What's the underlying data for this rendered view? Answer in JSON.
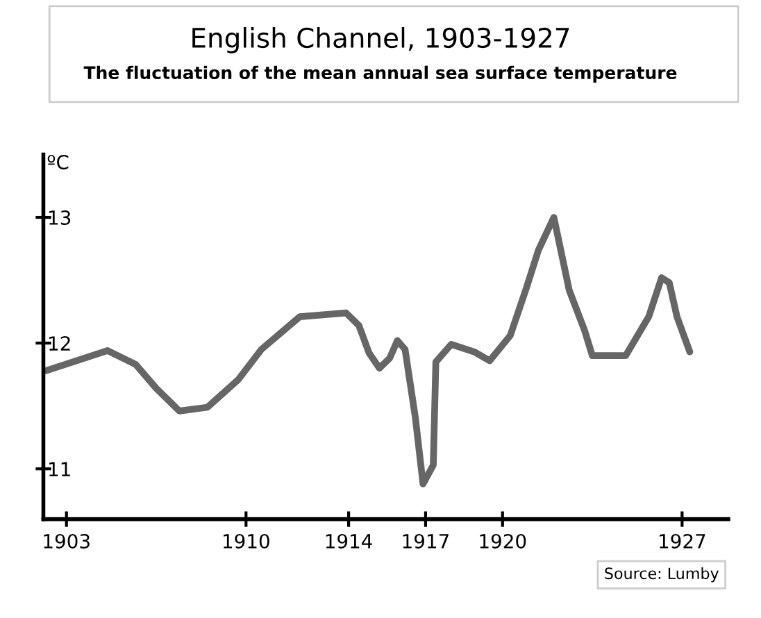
{
  "chart_data": {
    "type": "line",
    "title": "English Channel, 1903-1927",
    "subtitle": "The fluctuation of the mean annual sea surface temperature",
    "ylabel": "ºC",
    "annotations": [
      "Source: Lumby"
    ],
    "x": [
      1902.2,
      1904.6,
      1905.7,
      1906.5,
      1907.4,
      1908.5,
      1909.7,
      1910.6,
      1912.1,
      1913.9,
      1914.4,
      1914.8,
      1915.2,
      1915.6,
      1915.9,
      1916.2,
      1916.6,
      1916.9,
      1917.3,
      1917.4,
      1918.0,
      1918.9,
      1919.5,
      1920.3,
      1920.9,
      1921.4,
      1922.0,
      1922.6,
      1923.2,
      1923.5,
      1924.8,
      1925.7,
      1926.2,
      1926.5,
      1926.8,
      1927.3
    ],
    "series": [
      {
        "color": "#666666",
        "values": [
          11.78,
          11.94,
          11.83,
          11.64,
          11.46,
          11.49,
          11.71,
          11.95,
          12.21,
          12.24,
          12.14,
          11.92,
          11.8,
          11.88,
          12.02,
          11.95,
          11.41,
          10.88,
          11.03,
          11.85,
          11.99,
          11.93,
          11.86,
          12.06,
          12.42,
          12.74,
          13.0,
          12.42,
          12.1,
          11.9,
          11.9,
          12.21,
          12.52,
          12.48,
          12.21,
          11.93
        ]
      }
    ],
    "xlim": [
      1902.1,
      1928.8
    ],
    "ylim": [
      10.6,
      13.5
    ],
    "xticks": [
      1903,
      1910,
      1914,
      1917,
      1920,
      1927
    ],
    "yticks": [
      11,
      12,
      13
    ],
    "grid": false,
    "legend": false,
    "marker": "none",
    "line_style": "solid"
  }
}
